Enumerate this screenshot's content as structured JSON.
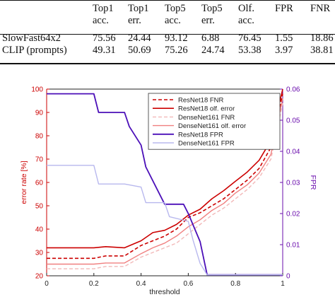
{
  "table": {
    "headers": [
      {
        "line1": "",
        "line2": ""
      },
      {
        "line1": "Top1",
        "line2": "acc."
      },
      {
        "line1": "Top1",
        "line2": "err."
      },
      {
        "line1": "Top5",
        "line2": "acc."
      },
      {
        "line1": "Top5",
        "line2": "err."
      },
      {
        "line1": "Olf.",
        "line2": "acc."
      },
      {
        "line1": "FPR",
        "line2": ""
      },
      {
        "line1": "FNR",
        "line2": ""
      }
    ],
    "rows": [
      [
        "SlowFast64x2",
        "75.56",
        "24.44",
        "93.12",
        "6.88",
        "76.45",
        "1.55",
        "18.86"
      ],
      [
        "CLIP (prompts)",
        "49.31",
        "50.69",
        "75.26",
        "24.74",
        "53.38",
        "3.97",
        "38.81"
      ]
    ]
  },
  "chart_data": {
    "type": "line",
    "xlabel": "threshold",
    "ylabel_left": "error rate [%]",
    "ylabel_right": "FPR",
    "xlim": [
      0,
      1
    ],
    "ylim_left": [
      20,
      100
    ],
    "ylim_right": [
      0,
      0.06
    ],
    "xticks": [
      "0",
      "0.2",
      "0.4",
      "0.6",
      "0.8",
      "1"
    ],
    "yticks_left": [
      "20",
      "30",
      "40",
      "50",
      "60",
      "70",
      "80",
      "90",
      "100"
    ],
    "yticks_right": [
      "0",
      "0.01",
      "0.02",
      "0.03",
      "0.04",
      "0.05",
      "0.06"
    ],
    "left_axis_color": "#cc0000",
    "right_axis_color": "#6a0dad",
    "legend_position": "top-right",
    "series": [
      {
        "name": "ResNet18 FNR",
        "axis": "left",
        "color": "#cc0000",
        "dash": "dashed",
        "width": 1.6,
        "x": [
          0,
          0.1,
          0.2,
          0.25,
          0.33,
          0.4,
          0.45,
          0.5,
          0.55,
          0.6,
          0.65,
          0.7,
          0.75,
          0.8,
          0.85,
          0.9,
          0.95,
          1.0
        ],
        "y": [
          27.5,
          27.5,
          27.5,
          28.5,
          28.5,
          33,
          35,
          37,
          40,
          45,
          47,
          50,
          53,
          57,
          61,
          66,
          75,
          98
        ]
      },
      {
        "name": "ResNet18 olf. error",
        "axis": "left",
        "color": "#cc0000",
        "dash": "solid",
        "width": 1.6,
        "x": [
          0,
          0.1,
          0.2,
          0.25,
          0.33,
          0.4,
          0.45,
          0.5,
          0.55,
          0.6,
          0.65,
          0.7,
          0.75,
          0.8,
          0.85,
          0.9,
          0.95,
          1.0
        ],
        "y": [
          32,
          32,
          32,
          32.5,
          32,
          35,
          38.5,
          39.5,
          42,
          46,
          48.5,
          53,
          56.5,
          60.5,
          64.5,
          69.5,
          78,
          100
        ]
      },
      {
        "name": "DenseNet161 FNR",
        "axis": "left",
        "color": "#f2b8b8",
        "dash": "dashed",
        "width": 1.4,
        "x": [
          0,
          0.1,
          0.2,
          0.25,
          0.33,
          0.4,
          0.45,
          0.5,
          0.55,
          0.6,
          0.65,
          0.7,
          0.75,
          0.8,
          0.85,
          0.9,
          0.95,
          1.0
        ],
        "y": [
          23,
          23,
          23,
          24,
          24,
          28,
          30,
          32,
          34,
          38,
          42,
          46,
          49,
          53,
          57,
          62,
          70,
          94
        ]
      },
      {
        "name": "DenseNet161 olf. error",
        "axis": "left",
        "color": "#f08080",
        "dash": "solid",
        "width": 1.4,
        "x": [
          0,
          0.1,
          0.2,
          0.25,
          0.33,
          0.4,
          0.45,
          0.5,
          0.55,
          0.6,
          0.65,
          0.7,
          0.75,
          0.8,
          0.85,
          0.9,
          0.95,
          1.0
        ],
        "y": [
          25,
          25,
          25,
          25.5,
          25.5,
          29.5,
          32,
          34,
          37,
          41,
          44,
          48,
          51,
          55.5,
          59,
          64,
          72,
          96
        ]
      },
      {
        "name": "ResNet18 FPR",
        "axis": "right",
        "color": "#4b0fb8",
        "dash": "solid",
        "width": 1.8,
        "x": [
          0,
          0.2,
          0.22,
          0.33,
          0.35,
          0.4,
          0.42,
          0.5,
          0.55,
          0.58,
          0.6,
          0.65,
          0.68,
          0.8,
          0.9,
          1.0
        ],
        "y": [
          0.0585,
          0.0585,
          0.0525,
          0.0525,
          0.048,
          0.042,
          0.035,
          0.023,
          0.023,
          0.023,
          0.02,
          0.011,
          0.0003,
          0.0003,
          0.0003,
          0.0003
        ]
      },
      {
        "name": "DenseNet161 FPR",
        "axis": "right",
        "color": "#b8b8ee",
        "dash": "solid",
        "width": 1.4,
        "x": [
          0,
          0.2,
          0.22,
          0.3,
          0.33,
          0.4,
          0.42,
          0.5,
          0.52,
          0.6,
          0.62,
          0.65,
          0.68,
          0.8,
          0.9,
          1.0
        ],
        "y": [
          0.0355,
          0.0355,
          0.0295,
          0.0295,
          0.0295,
          0.0285,
          0.0235,
          0.0235,
          0.019,
          0.0175,
          0.0115,
          0.004,
          0.0003,
          0.0003,
          0.0003,
          0.0003
        ]
      }
    ]
  }
}
